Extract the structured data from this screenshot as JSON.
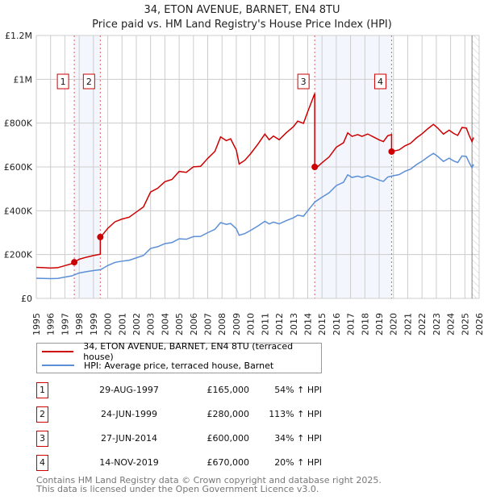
{
  "chart_data": {
    "type": "line",
    "title": "34, ETON AVENUE, BARNET, EN4 8TU",
    "subtitle": "Price paid vs. HM Land Registry's House Price Index (HPI)",
    "xlim": [
      1995,
      2026
    ],
    "ylim": [
      0,
      1200000
    ],
    "y_ticks": [
      {
        "v": 0,
        "label": "£0"
      },
      {
        "v": 200000,
        "label": "£200K"
      },
      {
        "v": 400000,
        "label": "£400K"
      },
      {
        "v": 600000,
        "label": "£600K"
      },
      {
        "v": 800000,
        "label": "£800K"
      },
      {
        "v": 1000000,
        "label": "£1M"
      },
      {
        "v": 1200000,
        "label": "£1.2M"
      }
    ],
    "x_ticks": [
      "1995",
      "1996",
      "1997",
      "1998",
      "1999",
      "2000",
      "2001",
      "2002",
      "2003",
      "2004",
      "2005",
      "2006",
      "2007",
      "2008",
      "2009",
      "2010",
      "2011",
      "2012",
      "2013",
      "2014",
      "2015",
      "2016",
      "2017",
      "2018",
      "2019",
      "2020",
      "2021",
      "2022",
      "2023",
      "2024",
      "2025",
      "2026"
    ],
    "grid": true,
    "forecast_from": 2025.5,
    "series": [
      {
        "name": "34, ETON AVENUE, BARNET, EN4 8TU (terraced house)",
        "color": "#cc0000"
      },
      {
        "name": "HPI: Average price, terraced house, Barnet",
        "color": "#5b8fd6",
        "x": [
          1995,
          1995.5,
          1996,
          1996.5,
          1997,
          1997.5,
          1998,
          1998.5,
          1999,
          1999.5,
          2000,
          2000.5,
          2001,
          2001.5,
          2002,
          2002.5,
          2003,
          2003.5,
          2004,
          2004.5,
          2005,
          2005.5,
          2006,
          2006.5,
          2007,
          2007.5,
          2007.9,
          2008.3,
          2008.6,
          2009,
          2009.2,
          2009.6,
          2010,
          2010.5,
          2011,
          2011.3,
          2011.6,
          2012,
          2012.5,
          2013,
          2013.3,
          2013.7,
          2014,
          2014.5,
          2015,
          2015.5,
          2016,
          2016.5,
          2016.8,
          2017.1,
          2017.5,
          2017.8,
          2018.2,
          2018.6,
          2019,
          2019.3,
          2019.6,
          2020,
          2020.4,
          2020.8,
          2021.2,
          2021.6,
          2022,
          2022.4,
          2022.8,
          2023.1,
          2023.5,
          2023.9,
          2024.2,
          2024.5,
          2024.8,
          2025.1,
          2025.3,
          2025.5,
          2025.6
        ],
        "y": [
          92000,
          91000,
          90000,
          91000,
          97000,
          103000,
          116000,
          122000,
          127000,
          131000,
          150000,
          164000,
          170000,
          174000,
          185000,
          196000,
          228000,
          236000,
          250000,
          255000,
          272000,
          270000,
          282000,
          283000,
          300000,
          315000,
          346000,
          338000,
          342000,
          318000,
          288000,
          296000,
          310000,
          330000,
          352000,
          340000,
          348000,
          340000,
          355000,
          368000,
          380000,
          375000,
          400000,
          440000,
          462000,
          482000,
          515000,
          530000,
          564000,
          552000,
          558000,
          552000,
          560000,
          550000,
          540000,
          534000,
          554000,
          560000,
          565000,
          580000,
          590000,
          610000,
          626000,
          645000,
          662000,
          648000,
          625000,
          640000,
          628000,
          620000,
          650000,
          648000,
          620000,
          596000,
          612000
        ]
      }
    ],
    "sales": [
      {
        "n": "1",
        "x": 1997.66,
        "date": "29-AUG-1997",
        "price": 165000,
        "price_label": "£165,000",
        "hpi": "54% ↑ HPI",
        "ratio": 1.54
      },
      {
        "n": "2",
        "x": 1999.48,
        "date": "24-JUN-1999",
        "price": 280000,
        "price_label": "£280,000",
        "hpi": "113% ↑ HPI",
        "ratio": 2.13
      },
      {
        "n": "3",
        "x": 2014.49,
        "date": "27-JUN-2014",
        "price": 600000,
        "price_label": "£600,000",
        "hpi": "34% ↑ HPI",
        "ratio": 1.34
      },
      {
        "n": "4",
        "x": 2019.87,
        "date": "14-NOV-2019",
        "price": 670000,
        "price_label": "£670,000",
        "hpi": "20% ↑ HPI",
        "ratio": 1.2
      }
    ]
  },
  "footer": {
    "line1": "Contains HM Land Registry data © Crown copyright and database right 2025.",
    "line2": "This data is licensed under the Open Government Licence v3.0."
  }
}
